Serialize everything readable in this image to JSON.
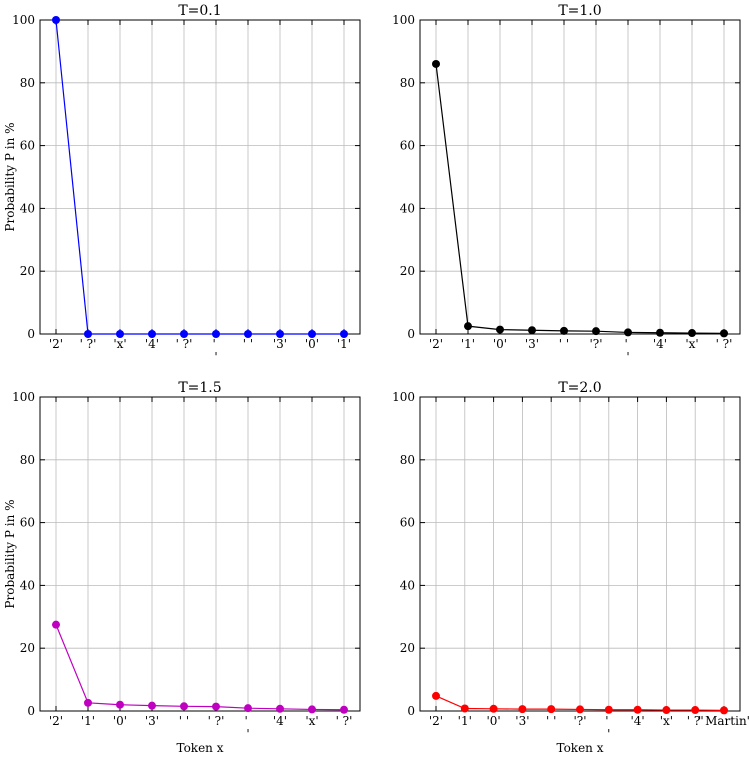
{
  "chart_data": [
    {
      "type": "line",
      "title": "T=0.1",
      "ylabel": "Probability P in %",
      "categories": [
        "'2'",
        "' ?'",
        "'x'",
        "'4'",
        "' ?'",
        "'\n'",
        "' '",
        "'3'",
        "'0'",
        "'1'"
      ],
      "values": [
        100,
        0,
        0,
        0,
        0,
        0,
        0,
        0,
        0,
        0
      ],
      "color": "#0000ff",
      "ylim": [
        0,
        100
      ],
      "yticks": [
        0,
        20,
        40,
        60,
        80,
        100
      ],
      "grid": true
    },
    {
      "type": "line",
      "title": "T=1.0",
      "categories": [
        "'2'",
        "'1'",
        "'0'",
        "'3'",
        "' '",
        "'?'",
        "'\n'",
        "'4'",
        "'x'",
        "' ?'"
      ],
      "values": [
        86,
        2.5,
        1.4,
        1.2,
        1.0,
        0.9,
        0.5,
        0.4,
        0.3,
        0.2
      ],
      "color": "#000000",
      "ylim": [
        0,
        100
      ],
      "yticks": [
        0,
        20,
        40,
        60,
        80,
        100
      ],
      "grid": true
    },
    {
      "type": "line",
      "title": "T=1.5",
      "ylabel": "Probability P in %",
      "xlabel": "Token x",
      "categories": [
        "'2'",
        "'1'",
        "'0'",
        "'3'",
        "' '",
        "' ?'",
        "'\n'",
        "'4'",
        "'x'",
        "' ?'"
      ],
      "values": [
        27.5,
        2.6,
        2.0,
        1.7,
        1.5,
        1.4,
        0.9,
        0.7,
        0.5,
        0.4
      ],
      "color": "#c000c0",
      "ylim": [
        0,
        100
      ],
      "yticks": [
        0,
        20,
        40,
        60,
        80,
        100
      ],
      "grid": true
    },
    {
      "type": "line",
      "title": "T=2.0",
      "xlabel": "Token x",
      "categories": [
        "'2'",
        "'1'",
        "'0'",
        "'3'",
        "' '",
        "'?'",
        "'\n'",
        "'4'",
        "'x'",
        "' ?'",
        "' Martin'"
      ],
      "values": [
        4.8,
        0.8,
        0.7,
        0.6,
        0.6,
        0.5,
        0.4,
        0.4,
        0.3,
        0.3,
        0.2
      ],
      "color": "#ff0000",
      "ylim": [
        0,
        100
      ],
      "yticks": [
        0,
        20,
        40,
        60,
        80,
        100
      ],
      "grid": true
    }
  ]
}
